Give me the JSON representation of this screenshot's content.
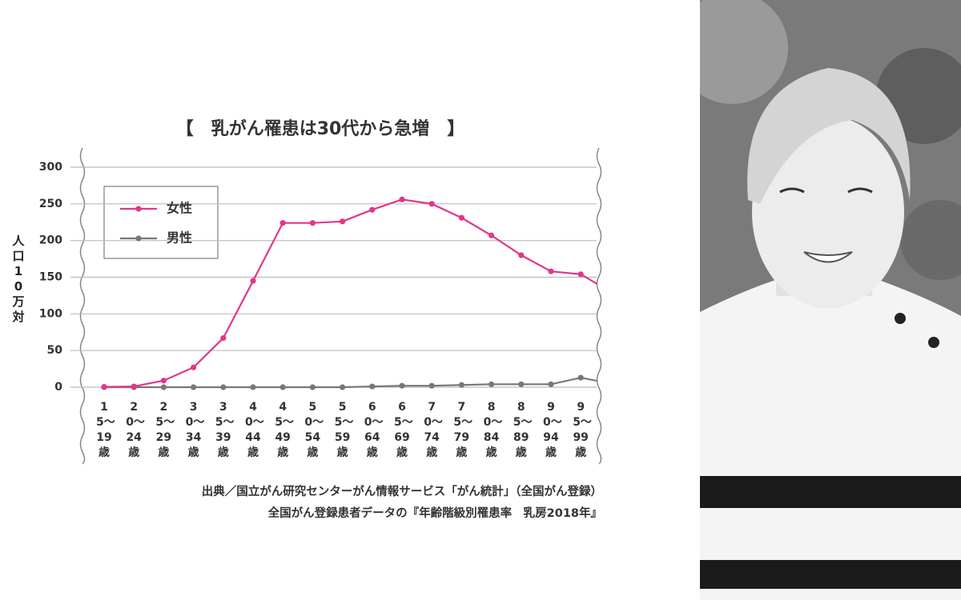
{
  "chart_data": {
    "type": "line",
    "title": "【　乳がん罹患は30代から急増　】",
    "y_label": "人口10万対",
    "categories": [
      "15〜19歳",
      "20〜24歳",
      "25〜29歳",
      "30〜34歳",
      "35〜39歳",
      "40〜44歳",
      "45〜49歳",
      "50〜54歳",
      "55〜59歳",
      "60〜64歳",
      "65〜69歳",
      "70〜74歳",
      "75〜79歳",
      "80〜84歳",
      "85〜89歳",
      "90〜94歳",
      "95〜99歳",
      null
    ],
    "series": [
      {
        "name": "女性",
        "color": "#e4358a",
        "values": [
          0.5,
          1,
          9,
          27,
          67,
          145,
          224,
          224,
          226,
          242,
          256,
          250,
          231,
          207,
          180,
          158,
          154,
          130
        ]
      },
      {
        "name": "男性",
        "color": "#777777",
        "values": [
          0,
          0,
          0,
          0,
          0,
          0,
          0,
          0,
          0,
          1,
          2,
          2,
          3,
          4,
          4,
          4,
          13,
          5
        ]
      }
    ],
    "ylim": [
      0,
      300
    ],
    "yticks": [
      0,
      50,
      100,
      150,
      200,
      250,
      300
    ],
    "grid": true,
    "source": [
      "出典／国立がん研究センターがん情報サービス「がん統計」（全国がん登録）",
      "全国がん登録患者データの『年齢階級別罹患率　乳房2018年』"
    ]
  }
}
